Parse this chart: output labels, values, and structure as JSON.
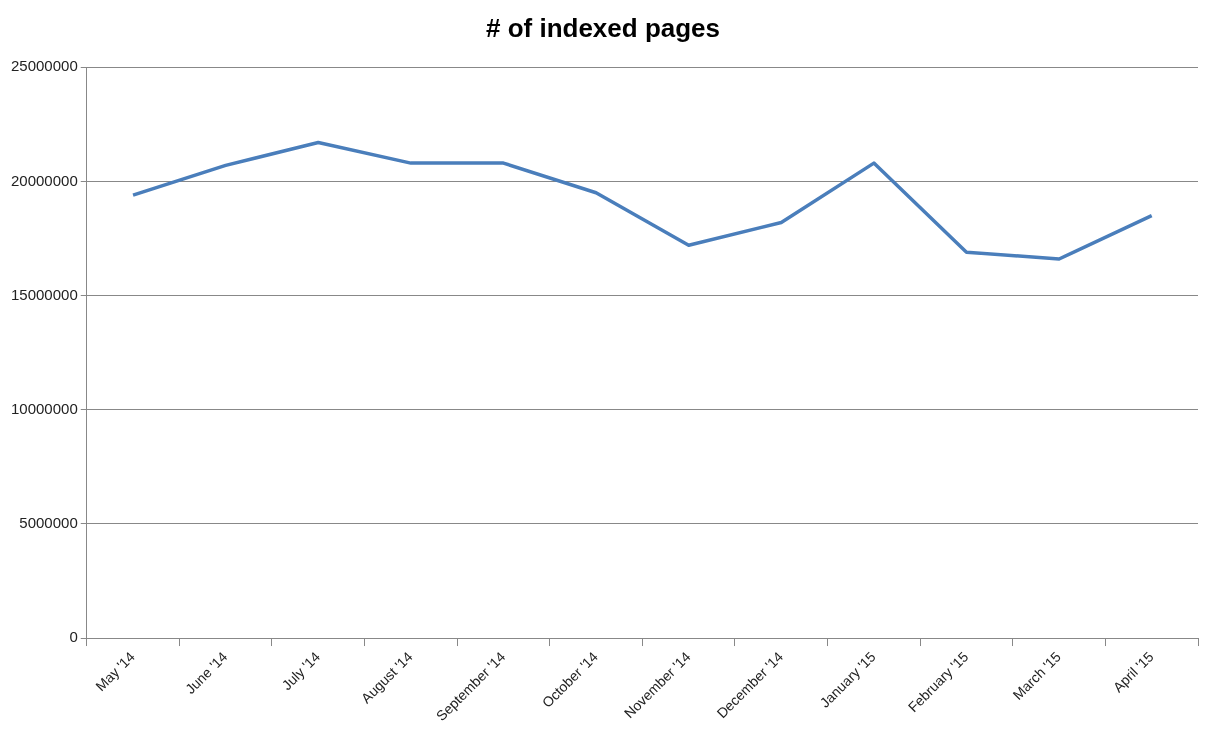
{
  "chart_data": {
    "type": "line",
    "title": "# of indexed pages",
    "categories": [
      "May '14",
      "June '14",
      "July '14",
      "August '14",
      "September '14",
      "October '14",
      "November '14",
      "December '14",
      "January '15",
      "February '15",
      "March '15",
      "April '15"
    ],
    "series": [
      {
        "color": "#4a7ebb",
        "values": [
          19400000,
          20700000,
          21700000,
          20800000,
          20800000,
          19500000,
          17200000,
          18200000,
          20800000,
          16900000,
          16600000,
          18500000
        ]
      }
    ],
    "ylim": [
      0,
      25000000
    ],
    "yticks": [
      0,
      5000000,
      10000000,
      15000000,
      20000000,
      25000000
    ],
    "grid": "y",
    "legend": false,
    "marker": "none",
    "line_style": "solid"
  }
}
